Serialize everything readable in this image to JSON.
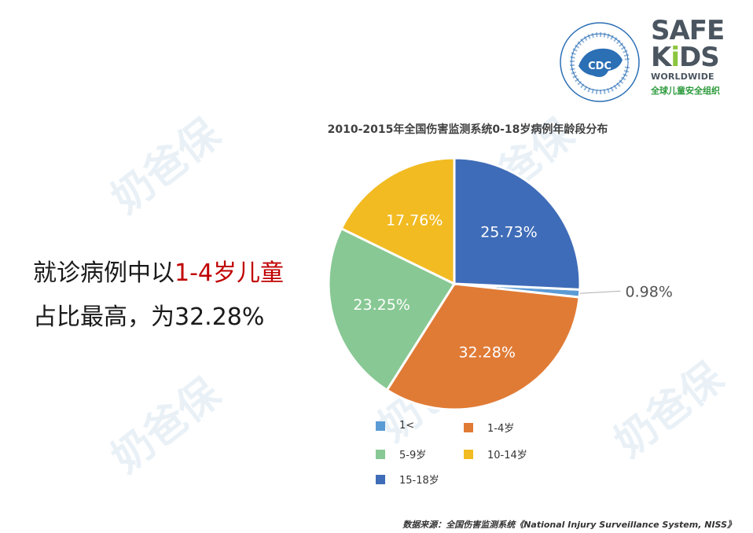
{
  "watermark_text": "奶爸保",
  "logos": {
    "cdc_seal_text": "CDC",
    "safekids_line1": "SAFE",
    "safekids_line2_a": "K",
    "safekids_line2_b": "i",
    "safekids_line2_c": "DS",
    "safekids_line3": "WORLDWIDE",
    "safekids_cn": "全球儿童安全组织"
  },
  "headline": {
    "line1_prefix": "就诊病例中以",
    "line1_highlight": "1-4岁儿童",
    "line2": "占比最高，为32.28%"
  },
  "colors": {
    "lt1": "#5b9bd5",
    "age1_4": "#e07b36",
    "age5_9": "#88c894",
    "age10_14": "#f2bb22",
    "age15_18": "#3f6cb8",
    "headline_highlight": "#c00000"
  },
  "chart_data": {
    "type": "pie",
    "title": "2010-2015年全国伤害监测系统0-18岁病例年龄段分布",
    "slices": [
      {
        "label": "1<",
        "value": 0.98,
        "value_label": "0.98%",
        "color": "#5b9bd5"
      },
      {
        "label": "1-4岁",
        "value": 32.28,
        "value_label": "32.28%",
        "color": "#e07b36"
      },
      {
        "label": "5-9岁",
        "value": 23.25,
        "value_label": "23.25%",
        "color": "#88c894"
      },
      {
        "label": "10-14岁",
        "value": 17.76,
        "value_label": "17.76%",
        "color": "#f2bb22"
      },
      {
        "label": "15-18岁",
        "value": 25.73,
        "value_label": "25.73%",
        "color": "#3f6cb8"
      }
    ],
    "legend_placement": "bottom"
  },
  "source": "数据来源：全国伤害监测系统《National Injury Surveillance System, NISS》"
}
